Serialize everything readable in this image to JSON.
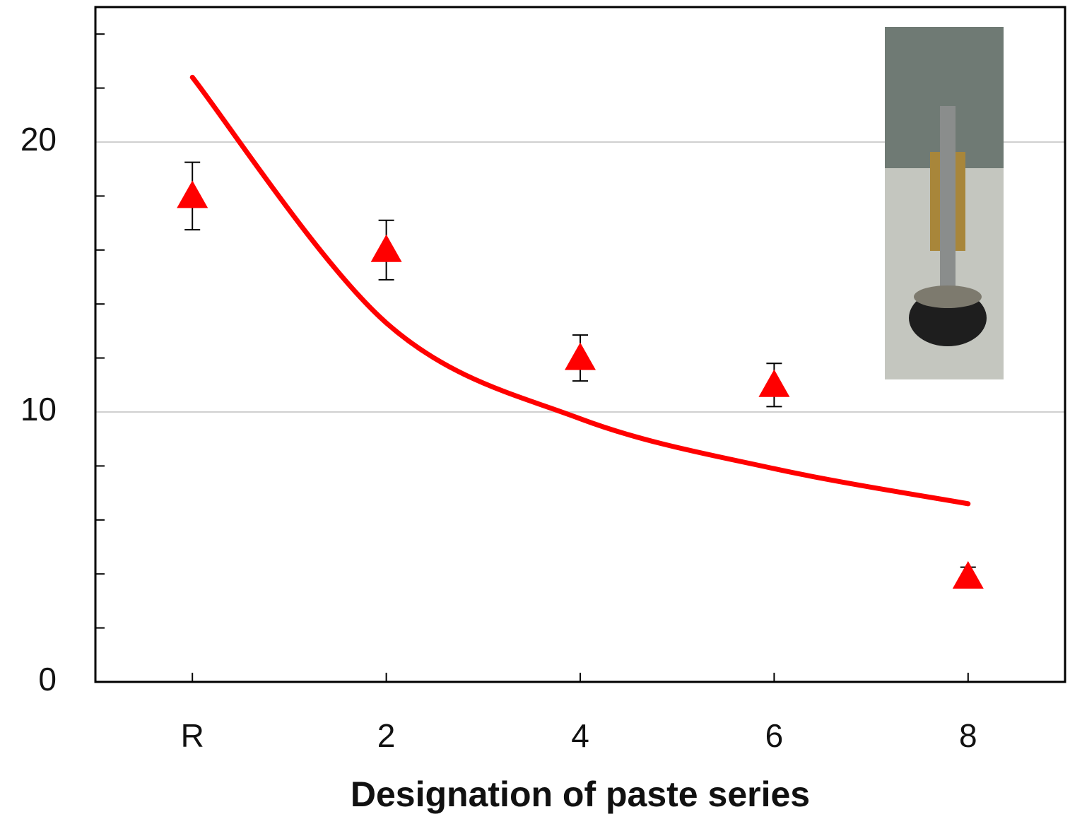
{
  "chart_data": {
    "type": "scatter",
    "x_label": "Designation of paste series",
    "categories": [
      "R",
      "2",
      "4",
      "6",
      "8"
    ],
    "series": [
      {
        "color": "#ff0000",
        "marker": "triangle",
        "values": [
          18,
          16,
          12,
          11,
          3.9
        ],
        "errors": [
          1.25,
          1.1,
          0.85,
          0.8,
          0.35
        ]
      }
    ],
    "trend": {
      "color": "#ff0000",
      "values": [
        22.4,
        13.3,
        9.75,
        7.9,
        6.6
      ]
    },
    "ylim": [
      0,
      25
    ],
    "yticks": [
      0,
      10,
      20
    ],
    "yminorticks": [
      2,
      4,
      6,
      8,
      12,
      14,
      16,
      18,
      22,
      24
    ],
    "grid": true
  }
}
